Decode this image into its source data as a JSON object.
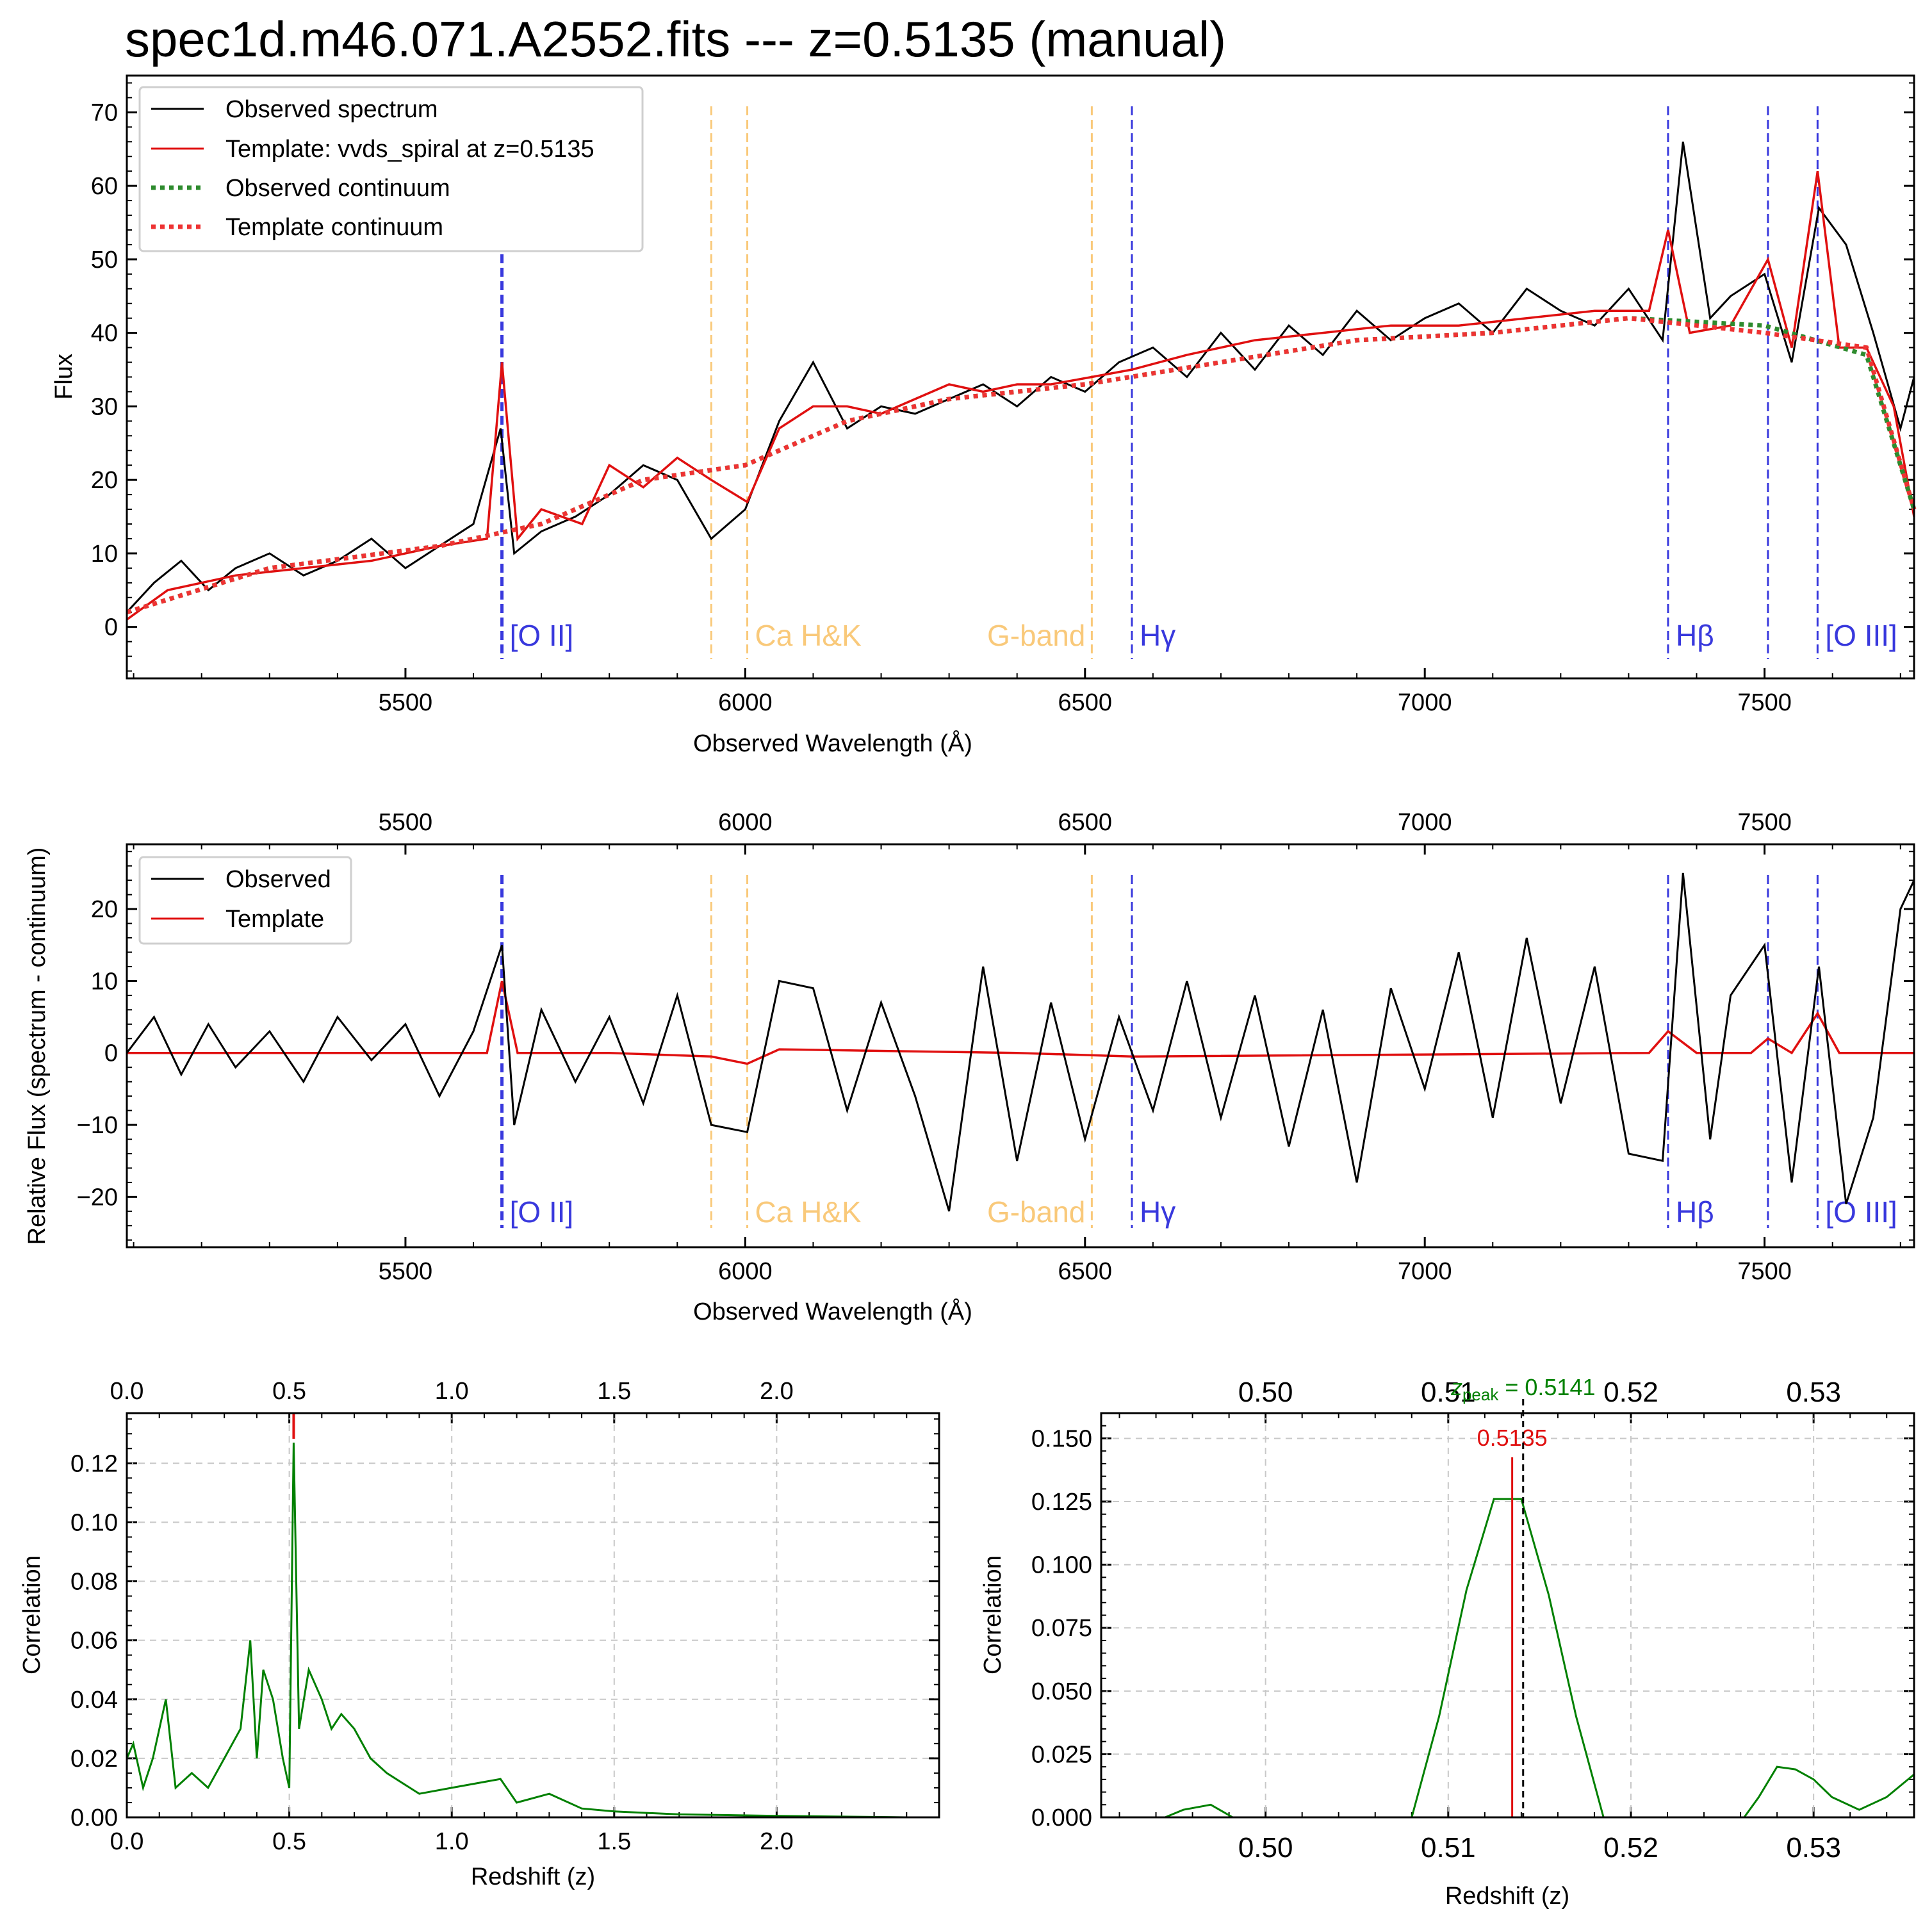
{
  "title": "spec1d.m46.071.A2552.fits --- z=0.5135 (manual)",
  "colors": {
    "observed": "#000000",
    "template": "#e01010",
    "obs_cont": "#2e8b2e",
    "tmpl_cont": "#ee3333",
    "emission": "#3838dd",
    "absorption": "#f9c97a",
    "corr": "#008000",
    "peak": "#000000",
    "grid": "#c8c8c8"
  },
  "spectral_lines": [
    {
      "label": "[O II]",
      "wave": 5642,
      "kind": "emission",
      "style": "bold"
    },
    {
      "label": "",
      "wave": 5950,
      "kind": "absorption"
    },
    {
      "label": "Ca H&K",
      "wave": 6003,
      "kind": "absorption"
    },
    {
      "label": "G-band",
      "wave": 6510,
      "kind": "absorption",
      "label_side": "left"
    },
    {
      "label": "Hγ",
      "wave": 6569,
      "kind": "emission"
    },
    {
      "label": "Hβ",
      "wave": 7358,
      "kind": "emission"
    },
    {
      "label": "",
      "wave": 7505,
      "kind": "emission"
    },
    {
      "label": "[O III]",
      "wave": 7578,
      "kind": "emission"
    }
  ],
  "chart_data": [
    {
      "type": "line",
      "xlabel": "Observed Wavelength (Å)",
      "ylabel": "Flux",
      "xlim": [
        5090,
        7720
      ],
      "ylim": [
        -7,
        75
      ],
      "xticks": [
        5500,
        6000,
        6500,
        7000,
        7500
      ],
      "yticks": [
        0,
        10,
        20,
        30,
        40,
        50,
        60,
        70
      ],
      "legend": [
        "Observed spectrum",
        "Template: vvds_spiral at z=0.5135",
        "Observed continuum",
        "Template continuum"
      ],
      "legend_loc": "upper left",
      "observed_spectrum": {
        "x": [
          5090,
          5130,
          5170,
          5210,
          5250,
          5300,
          5350,
          5400,
          5450,
          5500,
          5550,
          5600,
          5640,
          5660,
          5700,
          5750,
          5800,
          5850,
          5900,
          5950,
          6000,
          6050,
          6100,
          6150,
          6200,
          6250,
          6300,
          6350,
          6400,
          6450,
          6500,
          6550,
          6600,
          6650,
          6700,
          6750,
          6800,
          6850,
          6900,
          6950,
          7000,
          7050,
          7100,
          7150,
          7200,
          7250,
          7300,
          7350,
          7380,
          7420,
          7450,
          7500,
          7540,
          7580,
          7620,
          7660,
          7700,
          7720
        ],
        "y": [
          2,
          6,
          9,
          5,
          8,
          10,
          7,
          9,
          12,
          8,
          11,
          14,
          27,
          10,
          13,
          15,
          18,
          22,
          20,
          12,
          16,
          28,
          36,
          27,
          30,
          29,
          31,
          33,
          30,
          34,
          32,
          36,
          38,
          34,
          40,
          35,
          41,
          37,
          43,
          39,
          42,
          44,
          40,
          46,
          43,
          41,
          46,
          39,
          66,
          42,
          45,
          48,
          36,
          57,
          52,
          40,
          27,
          34
        ]
      },
      "template": {
        "x": [
          5090,
          5150,
          5250,
          5350,
          5450,
          5550,
          5620,
          5642,
          5665,
          5700,
          5760,
          5800,
          5850,
          5900,
          5950,
          6003,
          6050,
          6100,
          6150,
          6200,
          6250,
          6300,
          6350,
          6400,
          6450,
          6510,
          6569,
          6650,
          6750,
          6850,
          6950,
          7050,
          7150,
          7250,
          7330,
          7358,
          7390,
          7450,
          7505,
          7540,
          7578,
          7610,
          7650,
          7690,
          7720
        ],
        "y": [
          1,
          5,
          7,
          8,
          9,
          11,
          12,
          36,
          12,
          16,
          14,
          22,
          19,
          23,
          20,
          17,
          27,
          30,
          30,
          29,
          31,
          33,
          32,
          33,
          33,
          34,
          35,
          37,
          39,
          40,
          41,
          41,
          42,
          43,
          43,
          54,
          40,
          41,
          50,
          38,
          62,
          38,
          38,
          30,
          15
        ]
      },
      "observed_continuum": {
        "x": [
          5090,
          5300,
          5550,
          5700,
          5850,
          6000,
          6150,
          6300,
          6500,
          6700,
          6900,
          7100,
          7300,
          7500,
          7650,
          7720
        ],
        "y": [
          2,
          8,
          11,
          14,
          20,
          22,
          28,
          31,
          33,
          36,
          39,
          40,
          42,
          41,
          37,
          16
        ]
      },
      "template_continuum": {
        "x": [
          5090,
          5300,
          5550,
          5700,
          5850,
          6000,
          6150,
          6300,
          6500,
          6700,
          6900,
          7100,
          7300,
          7500,
          7650,
          7720
        ],
        "y": [
          2,
          8,
          11,
          14,
          20,
          22,
          28,
          31,
          33,
          36,
          39,
          40,
          42,
          40,
          38,
          16
        ]
      }
    },
    {
      "type": "line",
      "xlabel": "Observed Wavelength (Å)",
      "ylabel": "Relative Flux (spectrum - continuum)",
      "xlim": [
        5090,
        7720
      ],
      "ylim": [
        -27,
        29
      ],
      "xticks": [
        5500,
        6000,
        6500,
        7000,
        7500
      ],
      "yticks": [
        -20,
        -10,
        0,
        10,
        20
      ],
      "legend": [
        "Observed",
        "Template"
      ],
      "legend_loc": "upper left",
      "observed": {
        "x": [
          5090,
          5130,
          5170,
          5210,
          5250,
          5300,
          5350,
          5400,
          5450,
          5500,
          5550,
          5600,
          5642,
          5660,
          5700,
          5750,
          5800,
          5850,
          5900,
          5950,
          6003,
          6050,
          6100,
          6150,
          6200,
          6250,
          6300,
          6350,
          6400,
          6450,
          6500,
          6550,
          6600,
          6650,
          6700,
          6750,
          6800,
          6850,
          6900,
          6950,
          7000,
          7050,
          7100,
          7150,
          7200,
          7250,
          7300,
          7350,
          7380,
          7420,
          7450,
          7500,
          7540,
          7580,
          7620,
          7660,
          7700,
          7720
        ],
        "y": [
          0,
          5,
          -3,
          4,
          -2,
          3,
          -4,
          5,
          -1,
          4,
          -6,
          3,
          15,
          -10,
          6,
          -4,
          5,
          -7,
          8,
          -10,
          -11,
          10,
          9,
          -8,
          7,
          -6,
          -22,
          12,
          -15,
          7,
          -12,
          5,
          -8,
          10,
          -9,
          8,
          -13,
          6,
          -18,
          9,
          -5,
          14,
          -9,
          16,
          -7,
          12,
          -14,
          -15,
          25,
          -12,
          8,
          15,
          -18,
          12,
          -21,
          -9,
          20,
          24
        ]
      },
      "template": {
        "x": [
          5090,
          5300,
          5550,
          5620,
          5642,
          5665,
          5800,
          5950,
          6003,
          6050,
          6400,
          6569,
          7330,
          7358,
          7400,
          7480,
          7505,
          7540,
          7578,
          7610,
          7720
        ],
        "y": [
          0,
          0,
          0,
          0,
          10,
          0,
          0,
          -0.5,
          -1.5,
          0.5,
          0,
          -0.5,
          0,
          3,
          0,
          0,
          2,
          0,
          5.5,
          0,
          0
        ]
      }
    },
    {
      "type": "line",
      "xlabel": "Redshift (z)",
      "ylabel": "Correlation",
      "xlim": [
        0.0,
        2.5
      ],
      "ylim": [
        0.0,
        0.137
      ],
      "xticks": [
        0.0,
        0.5,
        1.0,
        1.5,
        2.0
      ],
      "yticks": [
        0.0,
        0.02,
        0.04,
        0.06,
        0.08,
        0.1,
        0.12
      ],
      "marker_z": 0.5135,
      "correlation": {
        "x": [
          0.0,
          0.02,
          0.05,
          0.08,
          0.12,
          0.15,
          0.2,
          0.25,
          0.3,
          0.35,
          0.38,
          0.4,
          0.42,
          0.45,
          0.48,
          0.5,
          0.5135,
          0.53,
          0.56,
          0.6,
          0.63,
          0.66,
          0.7,
          0.75,
          0.8,
          0.9,
          1.0,
          1.15,
          1.2,
          1.3,
          1.4,
          1.5,
          1.7,
          2.0,
          2.4
        ],
        "y": [
          0.02,
          0.025,
          0.01,
          0.02,
          0.04,
          0.01,
          0.015,
          0.01,
          0.02,
          0.03,
          0.06,
          0.02,
          0.05,
          0.04,
          0.02,
          0.01,
          0.127,
          0.03,
          0.05,
          0.04,
          0.03,
          0.035,
          0.03,
          0.02,
          0.015,
          0.008,
          0.01,
          0.013,
          0.005,
          0.008,
          0.003,
          0.002,
          0.001,
          0.0005,
          0.0
        ]
      }
    },
    {
      "type": "line",
      "xlabel": "Redshift (z)",
      "ylabel": "Correlation",
      "xlim": [
        0.491,
        0.5355
      ],
      "ylim": [
        0.0,
        0.16
      ],
      "xticks": [
        0.5,
        0.51,
        0.52,
        0.53
      ],
      "yticks": [
        0.0,
        0.025,
        0.05,
        0.075,
        0.1,
        0.125,
        0.15
      ],
      "marker_z": 0.5135,
      "marker_label": "0.5135",
      "peak_z": 0.5141,
      "peak_label_prefix": "z",
      "peak_label_sub": "peak",
      "peak_label_value": " = 0.5141",
      "correlation": {
        "x": [
          0.4945,
          0.4955,
          0.497,
          0.4982,
          0.4985,
          0.508,
          0.5095,
          0.511,
          0.5125,
          0.514,
          0.5155,
          0.517,
          0.5185,
          0.5262,
          0.527,
          0.528,
          0.529,
          0.53,
          0.531,
          0.5325,
          0.534,
          0.5355
        ],
        "y": [
          0.0,
          0.003,
          0.005,
          0.0,
          0.0,
          0.0,
          0.04,
          0.09,
          0.126,
          0.126,
          0.088,
          0.04,
          0.0,
          0.0,
          0.008,
          0.02,
          0.019,
          0.015,
          0.008,
          0.003,
          0.008,
          0.017
        ]
      }
    }
  ]
}
